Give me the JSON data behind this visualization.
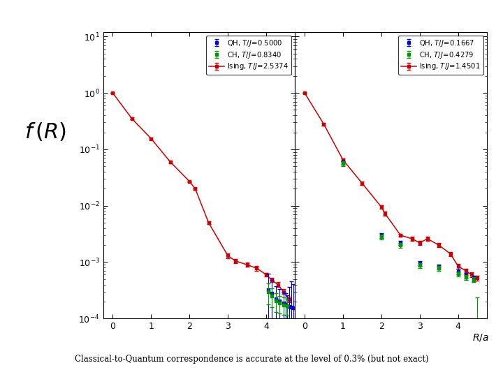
{
  "caption": "Classical-to-Quantum correspondence is accurate at the level of 0.3% (but not exact)",
  "left_legend_QH": "QH, $T/J\\!=\\!0.5000$",
  "left_legend_CH": "CH, $T/J\\!=\\!0.8340$",
  "left_legend_Ising": "Ising, $T/J\\!=\\!2.5374$",
  "right_legend_QH": "QH, $T/J\\!=\\!0.1667$",
  "right_legend_CH": "CH, $T/J\\!=\\!0.4279$",
  "right_legend_Ising": "Ising, $T/J\\!=\\!1.4501$",
  "color_QH": "#0000dd",
  "color_CH": "#009900",
  "color_Ising": "#cc0000",
  "left_ising_x": [
    0,
    0.5,
    1.0,
    1.5,
    2.0,
    2.15,
    2.5,
    3.0,
    3.2,
    3.5,
    3.75,
    4.0,
    4.15,
    4.3,
    4.45,
    4.6
  ],
  "left_ising_y": [
    1.0,
    0.35,
    0.155,
    0.06,
    0.027,
    0.02,
    0.005,
    0.0013,
    0.00105,
    0.0009,
    0.00078,
    0.0006,
    0.00048,
    0.0004,
    0.0003,
    0.00022
  ],
  "left_ising_yerr": [
    0.0,
    0.015,
    0.008,
    0.003,
    0.001,
    0.001,
    0.0003,
    0.00012,
    9e-05,
    8e-05,
    7e-05,
    5e-05,
    4e-05,
    4e-05,
    3e-05,
    2.5e-05
  ],
  "left_qh_x": [
    4.05,
    4.15,
    4.25,
    4.35,
    4.45,
    4.5,
    4.55,
    4.6,
    4.65,
    4.7
  ],
  "left_qh_y": [
    0.00032,
    0.00028,
    0.000225,
    0.000205,
    0.00019,
    0.00018,
    0.00017,
    0.000165,
    0.00016,
    0.000155
  ],
  "left_qh_yerr": [
    0.0003,
    0.0002,
    0.00015,
    0.00013,
    0.00011,
    0.0001,
    9e-05,
    0.0002,
    0.0003,
    0.00025
  ],
  "left_ch_x": [
    4.05,
    4.15,
    4.25,
    4.35,
    4.45,
    4.55
  ],
  "left_ch_y": [
    0.0003,
    0.00025,
    0.000205,
    0.000188,
    0.000175,
    0.000168
  ],
  "left_ch_yerr": [
    0.00012,
    9e-05,
    7.5e-05,
    6.5e-05,
    6e-05,
    5.5e-05
  ],
  "right_ising_x": [
    0,
    0.5,
    1.0,
    1.5,
    2.0,
    2.1,
    2.5,
    2.8,
    3.0,
    3.2,
    3.5,
    3.8,
    4.0,
    4.2,
    4.35,
    4.5
  ],
  "right_ising_y": [
    1.0,
    0.28,
    0.065,
    0.025,
    0.0095,
    0.0072,
    0.003,
    0.0026,
    0.0022,
    0.0026,
    0.002,
    0.0014,
    0.00085,
    0.0007,
    0.0006,
    0.00052
  ],
  "right_ising_yerr": [
    0.0,
    0.015,
    0.004,
    0.002,
    0.0007,
    0.0006,
    0.0002,
    0.0002,
    0.00018,
    0.0002,
    0.00016,
    0.00012,
    8e-05,
    7e-05,
    6e-05,
    5.5e-05
  ],
  "right_qh_x": [
    1.0,
    2.0,
    2.5,
    3.0,
    3.5,
    4.0,
    4.2,
    4.4
  ],
  "right_qh_y": [
    0.058,
    0.003,
    0.0022,
    0.00095,
    0.00082,
    0.00068,
    0.00058,
    0.00052
  ],
  "right_qh_yerr": [
    0.005,
    0.0003,
    0.0002,
    0.0001,
    8.5e-05,
    7.5e-05,
    6.5e-05,
    6e-05
  ],
  "right_ch_x": [
    1.0,
    2.0,
    2.5,
    3.0,
    3.5,
    4.0,
    4.2,
    4.4,
    4.5
  ],
  "right_ch_y": [
    0.056,
    0.0028,
    0.002,
    0.00088,
    0.00078,
    0.00062,
    0.00054,
    0.00049,
    3.5e-05
  ],
  "right_ch_yerr": [
    0.005,
    0.0003,
    0.0002,
    9e-05,
    8.2e-05,
    6.5e-05,
    5.5e-05,
    5.2e-05,
    0.0002
  ],
  "ylim": [
    0.0001,
    12.0
  ],
  "xticks": [
    0,
    1,
    2,
    3,
    4
  ],
  "xlim": [
    -0.25,
    4.75
  ]
}
